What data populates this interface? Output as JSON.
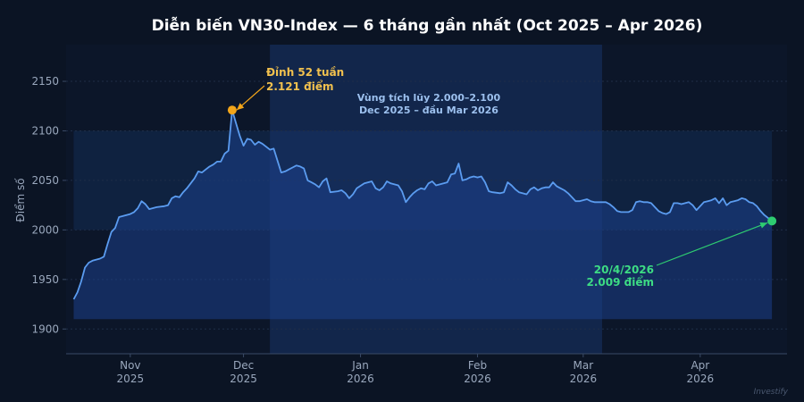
{
  "chart_data": {
    "type": "line",
    "title": "Diễn biến VN30-Index — 6 tháng gần nhất (Oct 2025 – Apr 2026)",
    "xlabel": "",
    "ylabel": "Điểm số",
    "ylim": [
      1875,
      2187
    ],
    "yticks": [
      1900,
      1950,
      2000,
      2050,
      2100,
      2150
    ],
    "x_range": [
      "2025-10-15",
      "2026-04-24"
    ],
    "xticks": [
      {
        "date": "2025-11-01",
        "label1": "Nov",
        "label2": "2025"
      },
      {
        "date": "2025-12-01",
        "label1": "Dec",
        "label2": "2025"
      },
      {
        "date": "2026-01-01",
        "label1": "Jan",
        "label2": "2026"
      },
      {
        "date": "2026-02-01",
        "label1": "Feb",
        "label2": "2026"
      },
      {
        "date": "2026-03-01",
        "label1": "Mar",
        "label2": "2026"
      },
      {
        "date": "2026-04-01",
        "label1": "Apr",
        "label2": "2026"
      }
    ],
    "fill_baseline": 1910,
    "band": {
      "y_from": 2000,
      "y_to": 2100
    },
    "zone": {
      "x_from": "2025-12-08",
      "x_to": "2026-03-06"
    },
    "series": [
      {
        "color": "#5b9cf0",
        "points": [
          [
            "2025-10-17",
            1930
          ],
          [
            "2025-10-18",
            1937
          ],
          [
            "2025-10-19",
            1948
          ],
          [
            "2025-10-20",
            1962
          ],
          [
            "2025-10-21",
            1967
          ],
          [
            "2025-10-22",
            1969
          ],
          [
            "2025-10-23",
            1970
          ],
          [
            "2025-10-24",
            1971
          ],
          [
            "2025-10-25",
            1973
          ],
          [
            "2025-10-26",
            1986
          ],
          [
            "2025-10-27",
            1998
          ],
          [
            "2025-10-28",
            2002
          ],
          [
            "2025-10-29",
            2013
          ],
          [
            "2025-10-30",
            2014
          ],
          [
            "2025-10-31",
            2015
          ],
          [
            "2025-11-01",
            2016
          ],
          [
            "2025-11-02",
            2018
          ],
          [
            "2025-11-03",
            2022
          ],
          [
            "2025-11-04",
            2029
          ],
          [
            "2025-11-05",
            2026
          ],
          [
            "2025-11-06",
            2021
          ],
          [
            "2025-11-07",
            2022
          ],
          [
            "2025-11-08",
            2023
          ],
          [
            "2025-11-10",
            2024
          ],
          [
            "2025-11-11",
            2025
          ],
          [
            "2025-11-12",
            2032
          ],
          [
            "2025-11-13",
            2034
          ],
          [
            "2025-11-14",
            2033
          ],
          [
            "2025-11-15",
            2038
          ],
          [
            "2025-11-16",
            2042
          ],
          [
            "2025-11-17",
            2047
          ],
          [
            "2025-11-18",
            2052
          ],
          [
            "2025-11-19",
            2059
          ],
          [
            "2025-11-20",
            2058
          ],
          [
            "2025-11-21",
            2061
          ],
          [
            "2025-11-22",
            2064
          ],
          [
            "2025-11-23",
            2066
          ],
          [
            "2025-11-24",
            2069
          ],
          [
            "2025-11-25",
            2069
          ],
          [
            "2025-11-26",
            2077
          ],
          [
            "2025-11-27",
            2080
          ],
          [
            "2025-11-28",
            2121
          ],
          [
            "2025-11-29",
            2108
          ],
          [
            "2025-11-30",
            2095
          ],
          [
            "2025-12-01",
            2085
          ],
          [
            "2025-12-02",
            2092
          ],
          [
            "2025-12-03",
            2091
          ],
          [
            "2025-12-04",
            2086
          ],
          [
            "2025-12-05",
            2089
          ],
          [
            "2025-12-06",
            2087
          ],
          [
            "2025-12-07",
            2084
          ],
          [
            "2025-12-08",
            2081
          ],
          [
            "2025-12-09",
            2082
          ],
          [
            "2025-12-10",
            2070
          ],
          [
            "2025-12-11",
            2058
          ],
          [
            "2025-12-12",
            2059
          ],
          [
            "2025-12-13",
            2061
          ],
          [
            "2025-12-14",
            2063
          ],
          [
            "2025-12-15",
            2065
          ],
          [
            "2025-12-16",
            2064
          ],
          [
            "2025-12-17",
            2062
          ],
          [
            "2025-12-18",
            2050
          ],
          [
            "2025-12-19",
            2048
          ],
          [
            "2025-12-20",
            2046
          ],
          [
            "2025-12-21",
            2043
          ],
          [
            "2025-12-22",
            2049
          ],
          [
            "2025-12-23",
            2052
          ],
          [
            "2025-12-24",
            2038
          ],
          [
            "2025-12-26",
            2039
          ],
          [
            "2025-12-27",
            2040
          ],
          [
            "2025-12-28",
            2037
          ],
          [
            "2025-12-29",
            2032
          ],
          [
            "2025-12-30",
            2036
          ],
          [
            "2025-12-31",
            2042
          ],
          [
            "2026-01-02",
            2047
          ],
          [
            "2026-01-03",
            2048
          ],
          [
            "2026-01-04",
            2049
          ],
          [
            "2026-01-05",
            2042
          ],
          [
            "2026-01-06",
            2040
          ],
          [
            "2026-01-07",
            2043
          ],
          [
            "2026-01-08",
            2049
          ],
          [
            "2026-01-09",
            2047
          ],
          [
            "2026-01-10",
            2046
          ],
          [
            "2026-01-11",
            2045
          ],
          [
            "2026-01-12",
            2039
          ],
          [
            "2026-01-13",
            2028
          ],
          [
            "2026-01-14",
            2033
          ],
          [
            "2026-01-15",
            2037
          ],
          [
            "2026-01-16",
            2040
          ],
          [
            "2026-01-17",
            2042
          ],
          [
            "2026-01-18",
            2041
          ],
          [
            "2026-01-19",
            2047
          ],
          [
            "2026-01-20",
            2049
          ],
          [
            "2026-01-21",
            2045
          ],
          [
            "2026-01-22",
            2046
          ],
          [
            "2026-01-23",
            2047
          ],
          [
            "2026-01-24",
            2048
          ],
          [
            "2026-01-25",
            2056
          ],
          [
            "2026-01-26",
            2057
          ],
          [
            "2026-01-27",
            2067
          ],
          [
            "2026-01-28",
            2050
          ],
          [
            "2026-01-29",
            2051
          ],
          [
            "2026-01-30",
            2053
          ],
          [
            "2026-01-31",
            2054
          ],
          [
            "2026-02-01",
            2053
          ],
          [
            "2026-02-02",
            2054
          ],
          [
            "2026-02-03",
            2048
          ],
          [
            "2026-02-04",
            2039
          ],
          [
            "2026-02-05",
            2038
          ],
          [
            "2026-02-07",
            2037
          ],
          [
            "2026-02-08",
            2038
          ],
          [
            "2026-02-09",
            2048
          ],
          [
            "2026-02-10",
            2045
          ],
          [
            "2026-02-11",
            2041
          ],
          [
            "2026-02-12",
            2038
          ],
          [
            "2026-02-14",
            2036
          ],
          [
            "2026-02-15",
            2041
          ],
          [
            "2026-02-16",
            2043
          ],
          [
            "2026-02-17",
            2040
          ],
          [
            "2026-02-18",
            2042
          ],
          [
            "2026-02-19",
            2043
          ],
          [
            "2026-02-20",
            2043
          ],
          [
            "2026-02-21",
            2048
          ],
          [
            "2026-02-22",
            2044
          ],
          [
            "2026-02-23",
            2042
          ],
          [
            "2026-02-24",
            2040
          ],
          [
            "2026-02-25",
            2037
          ],
          [
            "2026-02-26",
            2033
          ],
          [
            "2026-02-27",
            2029
          ],
          [
            "2026-02-28",
            2029
          ],
          [
            "2026-03-01",
            2030
          ],
          [
            "2026-03-02",
            2031
          ],
          [
            "2026-03-03",
            2029
          ],
          [
            "2026-03-04",
            2028
          ],
          [
            "2026-03-05",
            2028
          ],
          [
            "2026-03-07",
            2028
          ],
          [
            "2026-03-08",
            2026
          ],
          [
            "2026-03-09",
            2023
          ],
          [
            "2026-03-10",
            2019
          ],
          [
            "2026-03-11",
            2018
          ],
          [
            "2026-03-12",
            2018
          ],
          [
            "2026-03-13",
            2018
          ],
          [
            "2026-03-14",
            2020
          ],
          [
            "2026-03-15",
            2028
          ],
          [
            "2026-03-16",
            2029
          ],
          [
            "2026-03-17",
            2028
          ],
          [
            "2026-03-18",
            2028
          ],
          [
            "2026-03-19",
            2027
          ],
          [
            "2026-03-20",
            2023
          ],
          [
            "2026-03-21",
            2019
          ],
          [
            "2026-03-22",
            2017
          ],
          [
            "2026-03-23",
            2016
          ],
          [
            "2026-03-24",
            2018
          ],
          [
            "2026-03-25",
            2027
          ],
          [
            "2026-03-26",
            2027
          ],
          [
            "2026-03-27",
            2026
          ],
          [
            "2026-03-28",
            2027
          ],
          [
            "2026-03-29",
            2028
          ],
          [
            "2026-03-30",
            2025
          ],
          [
            "2026-03-31",
            2020
          ],
          [
            "2026-04-01",
            2024
          ],
          [
            "2026-04-02",
            2028
          ],
          [
            "2026-04-03",
            2029
          ],
          [
            "2026-04-04",
            2030
          ],
          [
            "2026-04-05",
            2032
          ],
          [
            "2026-04-06",
            2027
          ],
          [
            "2026-04-07",
            2032
          ],
          [
            "2026-04-08",
            2025
          ],
          [
            "2026-04-09",
            2028
          ],
          [
            "2026-04-10",
            2029
          ],
          [
            "2026-04-11",
            2030
          ],
          [
            "2026-04-12",
            2032
          ],
          [
            "2026-04-13",
            2031
          ],
          [
            "2026-04-14",
            2028
          ],
          [
            "2026-04-15",
            2027
          ],
          [
            "2026-04-16",
            2024
          ],
          [
            "2026-04-17",
            2019
          ],
          [
            "2026-04-18",
            2015
          ],
          [
            "2026-04-19",
            2012
          ],
          [
            "2026-04-20",
            2009
          ]
        ]
      }
    ],
    "annotations": {
      "peak": {
        "date": "2025-11-28",
        "value": 2121,
        "line1": "Đỉnh 52 tuần",
        "line2": "2.121 điểm",
        "color": "#f2a51a"
      },
      "zone": {
        "line1": "Vùng tích lũy 2.000–2.100",
        "line2": "Dec 2025 – đầu Mar 2026"
      },
      "last": {
        "date": "2026-04-20",
        "value": 2009,
        "line1": "20/4/2026",
        "line2": "2.009 điểm",
        "color": "#2ecc71"
      }
    },
    "watermark": "Investify",
    "grid": true,
    "legend": "none"
  }
}
